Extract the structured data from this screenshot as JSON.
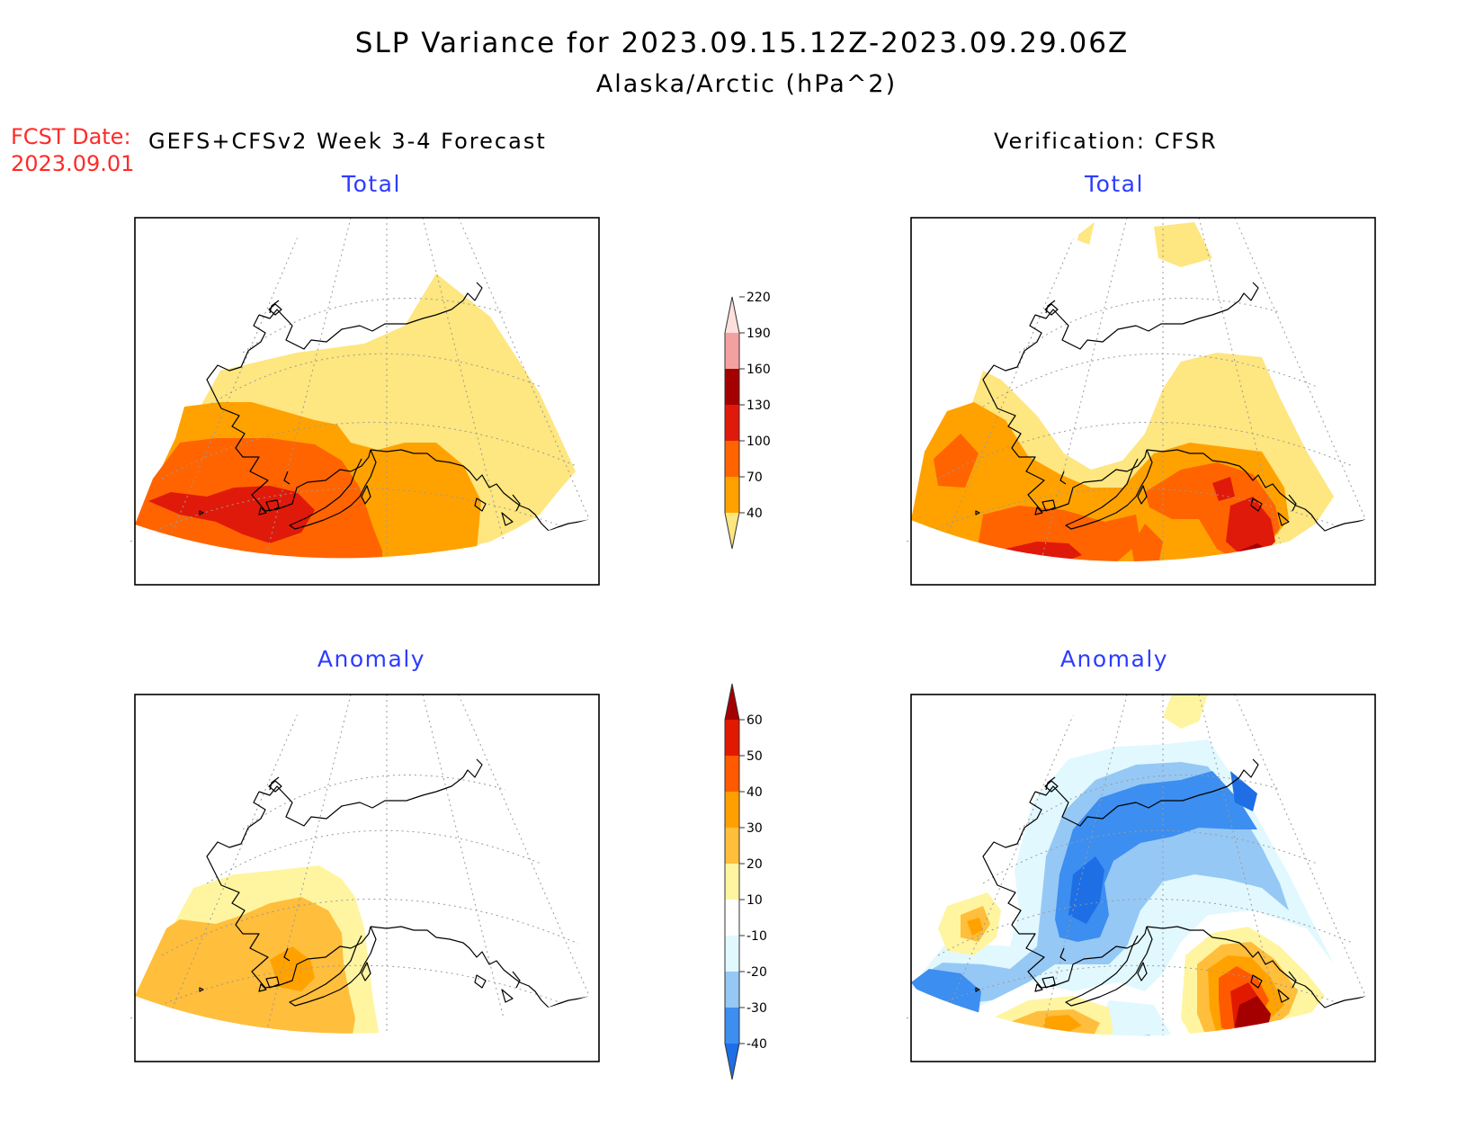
{
  "header": {
    "title": "SLP Variance for 2023.09.15.12Z-2023.09.29.06Z",
    "subtitle": "Alaska/Arctic (hPa^2)",
    "fcst_label": "FCST Date:",
    "fcst_date": "2023.09.01",
    "model_label": "GEFS+CFSv2 Week 3-4 Forecast",
    "verification_label": "Verification: CFSR"
  },
  "panels": {
    "forecast_total": "Total",
    "verification_total": "Total",
    "forecast_anomaly": "Anomaly",
    "verification_anomaly": "Anomaly"
  },
  "legend_total": {
    "ticks": [
      "40",
      "70",
      "100",
      "130",
      "160",
      "190",
      "220"
    ],
    "colors": [
      "#fee680",
      "#ffa200",
      "#ff6400",
      "#e01a0a",
      "#a50000",
      "#f4a0a0",
      "#fde0dc"
    ]
  },
  "legend_anomaly": {
    "ticks": [
      "-40",
      "-30",
      "-20",
      "-10",
      "10",
      "20",
      "30",
      "40",
      "50",
      "60"
    ],
    "colors": [
      "#1e6ee6",
      "#3c8ef0",
      "#96c8f5",
      "#e1f8ff",
      "#ffffff",
      "#fff5a0",
      "#ffbe3c",
      "#ffa000",
      "#ff5a00",
      "#e11900",
      "#a50000"
    ]
  }
}
